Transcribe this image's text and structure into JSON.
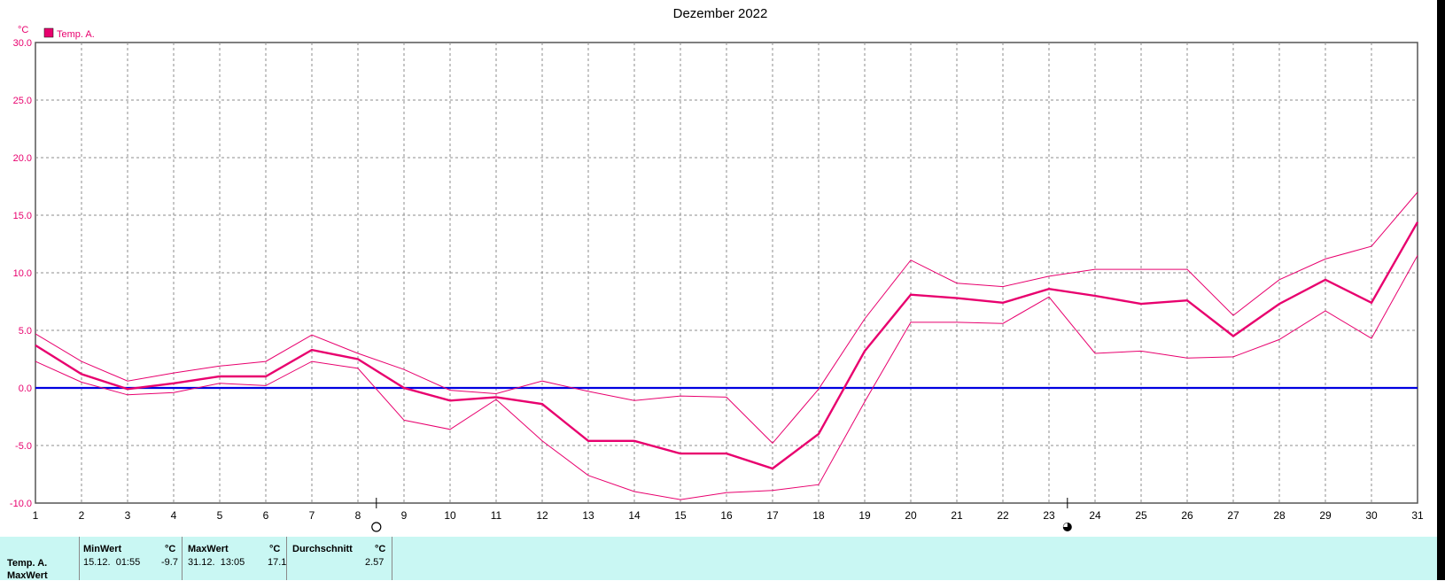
{
  "chart_data": {
    "type": "line",
    "title": "Dezember 2022",
    "ylabel": "°C",
    "legend": "top-left",
    "grid": true,
    "x": [
      1,
      2,
      3,
      4,
      5,
      6,
      7,
      8,
      9,
      10,
      11,
      12,
      13,
      14,
      15,
      16,
      17,
      18,
      19,
      20,
      21,
      22,
      23,
      24,
      25,
      26,
      27,
      28,
      29,
      30,
      31
    ],
    "xlim": [
      1,
      31
    ],
    "ylim": [
      -10,
      30
    ],
    "yticks": [
      "-10.0",
      "-5.0",
      "0.0",
      "5.0",
      "10.0",
      "15.0",
      "20.0",
      "25.0",
      "30.0"
    ],
    "ytick_values": [
      -10,
      -5,
      0,
      5,
      10,
      15,
      20,
      25,
      30
    ],
    "colors": {
      "series": "#e8006e",
      "zero_line": "#0000e0",
      "grid": "#8c8c8c",
      "tick_text": "#e8006e"
    },
    "series": [
      {
        "name": "Temp. A.",
        "role": "mean",
        "values": [
          3.7,
          1.2,
          -0.1,
          0.4,
          1.0,
          1.0,
          3.3,
          2.5,
          0.0,
          -1.1,
          -0.8,
          -1.4,
          -4.6,
          -4.6,
          -5.7,
          -5.7,
          -7.0,
          -4.0,
          3.2,
          8.1,
          7.8,
          7.4,
          8.6,
          8.0,
          7.3,
          7.6,
          4.5,
          7.3,
          9.4,
          7.4,
          14.4
        ]
      },
      {
        "role": "max",
        "values": [
          4.7,
          2.3,
          0.6,
          1.3,
          1.9,
          2.3,
          4.6,
          3.0,
          1.6,
          -0.2,
          -0.5,
          0.6,
          -0.3,
          -1.1,
          -0.7,
          -0.8,
          -4.8,
          -0.1,
          6.0,
          11.1,
          9.1,
          8.8,
          9.7,
          10.3,
          10.3,
          10.3,
          6.3,
          9.4,
          11.2,
          12.3,
          17.0
        ]
      },
      {
        "role": "min",
        "values": [
          2.3,
          0.5,
          -0.6,
          -0.4,
          0.4,
          0.2,
          2.3,
          1.7,
          -2.8,
          -3.6,
          -1.0,
          -4.6,
          -7.6,
          -9.0,
          -9.7,
          -9.1,
          -8.9,
          -8.4,
          -1.2,
          5.7,
          5.7,
          5.6,
          7.9,
          3.0,
          3.2,
          2.6,
          2.7,
          4.2,
          6.7,
          4.3,
          11.5
        ]
      }
    ],
    "moon_phases": [
      {
        "day": 8,
        "phase": "full-moon-icon"
      },
      {
        "day": 23,
        "phase": "new-moon-icon"
      }
    ]
  },
  "stats": {
    "row_label": "Temp. A.",
    "next_row_label": "MaxWert",
    "min": {
      "header": "MinWert",
      "unit": "°C",
      "when": "15.12.  01:55",
      "value": "-9.7"
    },
    "max": {
      "header": "MaxWert",
      "unit": "°C",
      "when": "31.12.  13:05",
      "value": "17.1"
    },
    "avg": {
      "header": "Durchschnitt",
      "unit": "°C",
      "value": "2.57"
    }
  },
  "panel_color": "#c9f7f3"
}
